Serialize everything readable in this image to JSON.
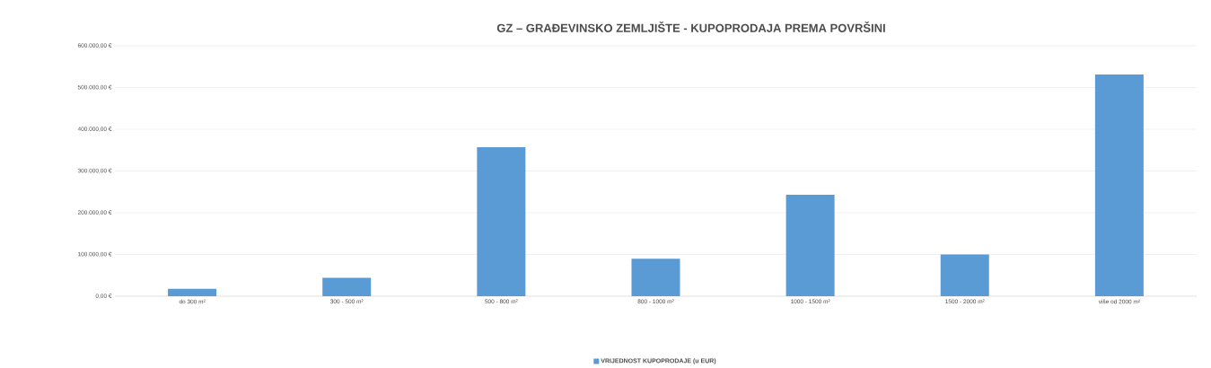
{
  "chart_data": {
    "type": "bar",
    "title": "GZ – GRAĐEVINSKO ZEMLJIŠTE - KUPOPRODAJA PREMA POVRŠINI",
    "categories": [
      "do 300 m²",
      "300 - 500 m²",
      "500 - 800 m²",
      "800 - 1000 m²",
      "1000 - 1500 m²",
      "1500 - 2000 m²",
      "više od 2000 m²"
    ],
    "series": [
      {
        "name": "VRIJEDNOST KUPOPRODAJE (u EUR)",
        "color": "#5b9bd5",
        "values": [
          18000,
          44000,
          357000,
          90000,
          243000,
          100000,
          531000
        ]
      }
    ],
    "ylim": [
      0,
      600000
    ],
    "yticks": [
      {
        "value": 0,
        "label": "0,00 €"
      },
      {
        "value": 100000,
        "label": "100.000,00 €"
      },
      {
        "value": 200000,
        "label": "200.000,00 €"
      },
      {
        "value": 300000,
        "label": "300.000,00 €"
      },
      {
        "value": 400000,
        "label": "400.000,00 €"
      },
      {
        "value": 500000,
        "label": "500.000,00 €"
      },
      {
        "value": 600000,
        "label": "600.000,00 €"
      }
    ],
    "grid": "y",
    "legend": "bottom"
  }
}
